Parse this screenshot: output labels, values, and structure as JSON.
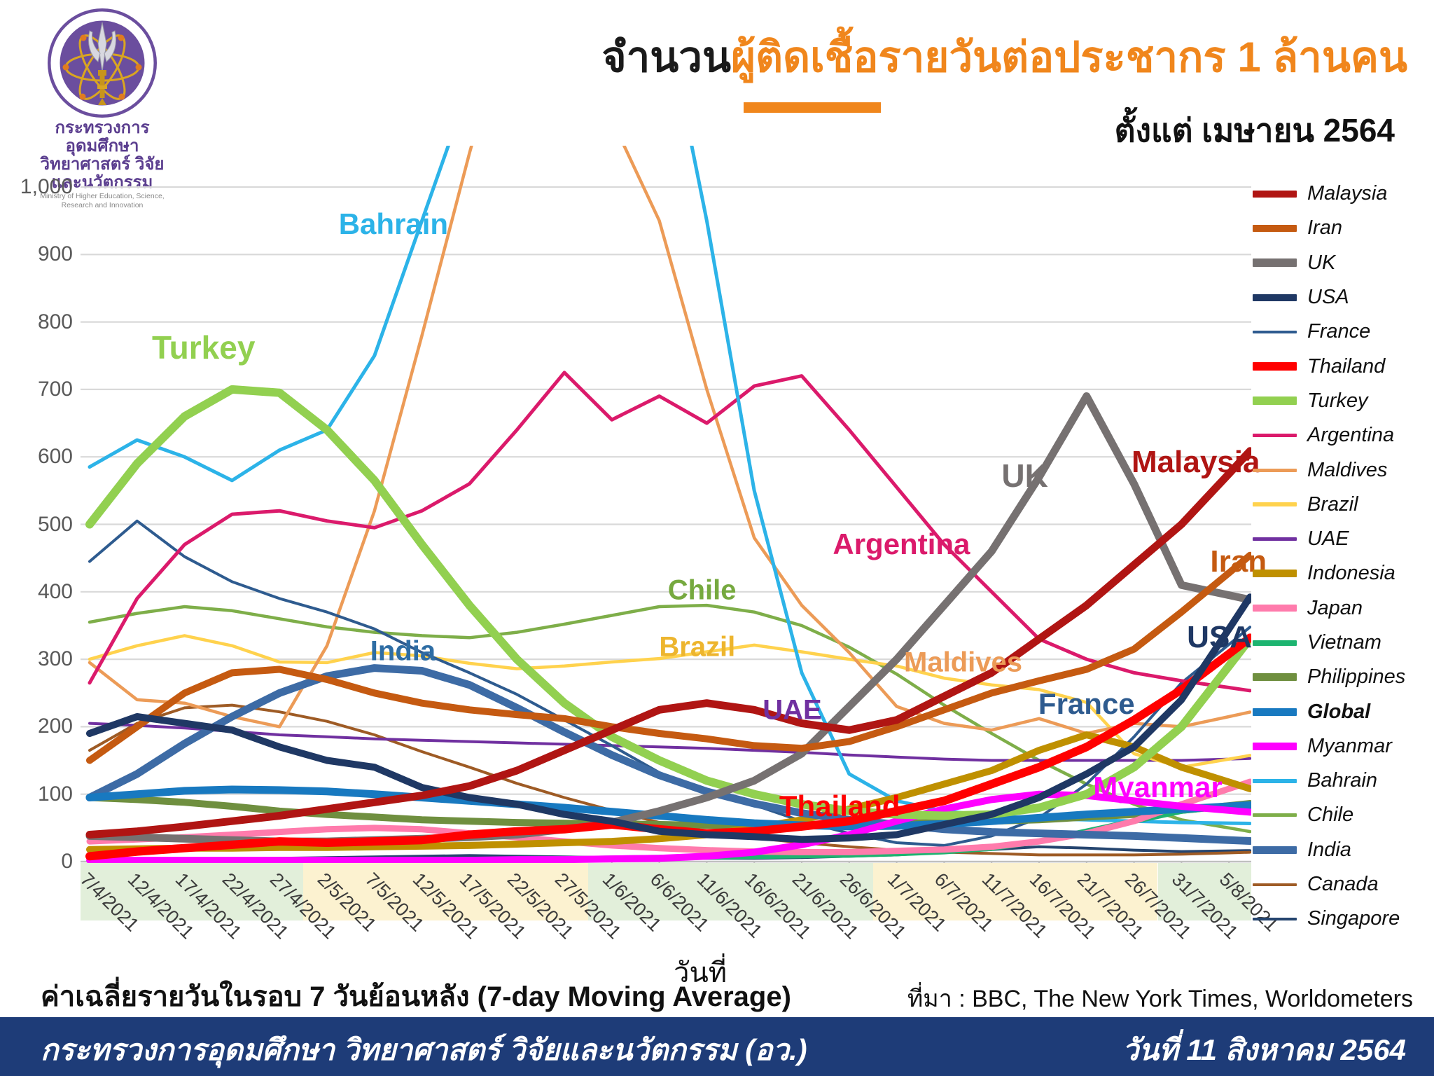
{
  "header": {
    "logo": {
      "line1": "กระทรวงการอุดมศึกษา",
      "line2": "วิทยาศาสตร์ วิจัยและนวัตกรรม",
      "line3": "Ministry of Higher Education, Science, Research and Innovation"
    },
    "title_black": "จำนวน",
    "title_orange": "ผู้ติดเชื้อรายวันต่อประชากร 1 ล้านคน",
    "subtitle": "ตั้งแต่ เมษายน 2564",
    "accent_color": "#F0861C"
  },
  "chart_data": {
    "type": "line",
    "title": "จำนวนผู้ติดเชื้อรายวันต่อประชากร 1 ล้านคน ตั้งแต่ เมษายน 2564",
    "xlabel": "วันที่",
    "ylabel": "",
    "ylim": [
      0,
      1000
    ],
    "ytick_interval": 100,
    "y_tick_labels": [
      "0",
      "100",
      "200",
      "300",
      "400",
      "500",
      "600",
      "700",
      "800",
      "900",
      "1,000"
    ],
    "grid": "horizontal",
    "legend_position": "right",
    "note": "ค่าเฉลี่ยรายวันในรอบ 7 วันย้อนหลัง (7-day Moving Average)",
    "x_labels": [
      "7/4/2021",
      "12/4/2021",
      "17/4/2021",
      "22/4/2021",
      "27/4/2021",
      "2/5/2021",
      "7/5/2021",
      "12/5/2021",
      "17/5/2021",
      "22/5/2021",
      "27/5/2021",
      "1/6/2021",
      "6/6/2021",
      "11/6/2021",
      "16/6/2021",
      "21/6/2021",
      "26/6/2021",
      "1/7/2021",
      "6/7/2021",
      "11/7/2021",
      "16/7/2021",
      "21/7/2021",
      "26/7/2021",
      "31/7/2021",
      "5/8/2021"
    ],
    "bands": [
      {
        "from": 0,
        "to": 4,
        "color": "#E2EFDA"
      },
      {
        "from": 5,
        "to": 10,
        "color": "#FCF2D0"
      },
      {
        "from": 11,
        "to": 16,
        "color": "#E2EFDA"
      },
      {
        "from": 17,
        "to": 22,
        "color": "#FCF2D0"
      },
      {
        "from": 23,
        "to": 24,
        "color": "#E2EFDA"
      }
    ],
    "series": [
      {
        "name": "Singapore",
        "color": "#25456F",
        "width": 4,
        "values": [
          3,
          3,
          3,
          4,
          5,
          6,
          7,
          8,
          9,
          8,
          7,
          6,
          5,
          5,
          5,
          6,
          8,
          10,
          14,
          18,
          22,
          20,
          17,
          15,
          16
        ]
      },
      {
        "name": "Canada",
        "color": "#9E5B25",
        "width": 4,
        "values": [
          165,
          205,
          228,
          232,
          222,
          208,
          188,
          163,
          140,
          116,
          95,
          76,
          58,
          45,
          35,
          28,
          22,
          17,
          14,
          12,
          10,
          10,
          10,
          11,
          13
        ]
      },
      {
        "name": "Chile",
        "color": "#7EAE49",
        "width": 4.5,
        "values": [
          355,
          368,
          378,
          372,
          360,
          348,
          340,
          335,
          332,
          340,
          352,
          365,
          378,
          380,
          370,
          350,
          318,
          278,
          232,
          190,
          150,
          115,
          85,
          62,
          50
        ]
      },
      {
        "name": "UAE",
        "color": "#7030A0",
        "width": 4,
        "values": [
          205,
          202,
          198,
          193,
          188,
          185,
          182,
          180,
          178,
          176,
          174,
          172,
          170,
          168,
          165,
          162,
          158,
          155,
          152,
          150,
          150,
          150,
          150,
          150,
          152
        ]
      },
      {
        "name": "Brazil",
        "color": "#FFD24D",
        "width": 4.5,
        "values": [
          300,
          320,
          335,
          320,
          296,
          295,
          310,
          305,
          294,
          286,
          290,
          296,
          301,
          311,
          321,
          311,
          300,
          290,
          272,
          262,
          255,
          236,
          160,
          140,
          152
        ]
      },
      {
        "name": "Maldives",
        "color": "#EC9B57",
        "width": 4.5,
        "values": [
          295,
          240,
          235,
          215,
          200,
          320,
          520,
          780,
          1050,
          1300,
          1250,
          1100,
          950,
          700,
          480,
          380,
          310,
          230,
          205,
          195,
          212,
          190,
          205,
          200,
          215
        ]
      },
      {
        "name": "France",
        "color": "#2E5B8F",
        "width": 4,
        "values": [
          445,
          505,
          452,
          415,
          390,
          370,
          345,
          310,
          280,
          248,
          210,
          172,
          132,
          104,
          84,
          60,
          42,
          28,
          24,
          38,
          65,
          115,
          185,
          265,
          322
        ]
      },
      {
        "name": "Argentina",
        "color": "#DB1A6B",
        "width": 5,
        "values": [
          265,
          390,
          470,
          515,
          520,
          505,
          495,
          520,
          560,
          640,
          725,
          655,
          690,
          650,
          705,
          720,
          640,
          555,
          470,
          400,
          330,
          300,
          280,
          268,
          258
        ]
      },
      {
        "name": "Bahrain",
        "color": "#2CB3E8",
        "width": 5,
        "values": [
          585,
          625,
          600,
          565,
          610,
          640,
          750,
          950,
          1150,
          1500,
          1700,
          1600,
          1300,
          950,
          550,
          280,
          130,
          90,
          75,
          68,
          64,
          62,
          60,
          58,
          57
        ]
      },
      {
        "name": "Philippines",
        "color": "#6F8F3F",
        "width": 10,
        "values": [
          95,
          92,
          88,
          82,
          75,
          70,
          66,
          62,
          60,
          58,
          57,
          56,
          55,
          54,
          54,
          55,
          56,
          57,
          58,
          60,
          62,
          66,
          70,
          76,
          83
        ]
      },
      {
        "name": "Vietnam",
        "color": "#1DB470",
        "width": 8,
        "values": [
          1,
          1,
          1,
          1,
          1,
          1,
          1,
          2,
          2,
          3,
          4,
          5,
          6,
          7,
          8,
          9,
          10,
          12,
          15,
          20,
          30,
          45,
          60,
          75,
          82
        ]
      },
      {
        "name": "Japan",
        "color": "#FF7BAC",
        "width": 9,
        "values": [
          30,
          33,
          36,
          40,
          44,
          48,
          50,
          48,
          42,
          36,
          30,
          24,
          20,
          17,
          15,
          14,
          14,
          16,
          18,
          22,
          30,
          42,
          60,
          85,
          108
        ]
      },
      {
        "name": "Indonesia",
        "color": "#BF9000",
        "width": 10,
        "values": [
          18,
          19,
          20,
          20,
          21,
          21,
          22,
          23,
          24,
          26,
          28,
          30,
          34,
          40,
          50,
          62,
          78,
          95,
          115,
          135,
          165,
          188,
          170,
          140,
          118
        ]
      },
      {
        "name": "India",
        "color": "#3D6BA5",
        "width": 11,
        "values": [
          95,
          130,
          175,
          215,
          250,
          275,
          287,
          283,
          262,
          228,
          192,
          158,
          128,
          104,
          86,
          72,
          62,
          55,
          48,
          44,
          42,
          40,
          38,
          35,
          32
        ]
      },
      {
        "name": "Global",
        "color": "#1879C0",
        "width": 11,
        "values": [
          95,
          100,
          105,
          107,
          106,
          104,
          100,
          95,
          90,
          85,
          80,
          74,
          68,
          62,
          57,
          54,
          52,
          53,
          56,
          60,
          65,
          70,
          74,
          78,
          82
        ]
      },
      {
        "name": "Myanmar",
        "color": "#FF00FF",
        "width": 10,
        "values": [
          2,
          2,
          2,
          2,
          2,
          2,
          2,
          2,
          2,
          3,
          3,
          4,
          5,
          8,
          14,
          25,
          40,
          60,
          78,
          92,
          100,
          98,
          90,
          82,
          76
        ]
      },
      {
        "name": "Turkey",
        "color": "#92D050",
        "width": 12,
        "values": [
          500,
          590,
          660,
          700,
          695,
          640,
          565,
          470,
          380,
          300,
          235,
          185,
          150,
          120,
          100,
          85,
          75,
          70,
          68,
          70,
          80,
          100,
          140,
          200,
          290
        ]
      },
      {
        "name": "UK",
        "color": "#767171",
        "width": 11,
        "values": [
          38,
          36,
          34,
          32,
          30,
          30,
          32,
          34,
          36,
          40,
          48,
          58,
          75,
          95,
          120,
          160,
          230,
          300,
          380,
          460,
          570,
          690,
          560,
          410,
          395
        ]
      },
      {
        "name": "Iran",
        "color": "#C55A11",
        "width": 10,
        "values": [
          150,
          200,
          250,
          280,
          285,
          270,
          250,
          235,
          225,
          218,
          212,
          200,
          190,
          182,
          172,
          168,
          178,
          200,
          225,
          250,
          268,
          285,
          315,
          370,
          428
        ]
      },
      {
        "name": "Thailand",
        "color": "#FF0000",
        "width": 12,
        "values": [
          8,
          15,
          20,
          25,
          30,
          28,
          30,
          32,
          40,
          45,
          48,
          55,
          48,
          42,
          45,
          52,
          60,
          75,
          90,
          115,
          140,
          170,
          210,
          255,
          308
        ]
      },
      {
        "name": "USA",
        "color": "#1F3864",
        "width": 10,
        "values": [
          190,
          215,
          205,
          195,
          170,
          150,
          140,
          110,
          95,
          85,
          70,
          60,
          45,
          40,
          37,
          33,
          35,
          40,
          55,
          70,
          95,
          130,
          170,
          240,
          345
        ]
      },
      {
        "name": "Malaysia",
        "color": "#B01513",
        "width": 11,
        "values": [
          40,
          45,
          52,
          60,
          68,
          78,
          88,
          98,
          112,
          135,
          165,
          195,
          225,
          235,
          225,
          205,
          195,
          210,
          245,
          280,
          330,
          380,
          440,
          500,
          575
        ]
      }
    ],
    "annotations": [
      {
        "text": "Bahrain",
        "color": "#2CB3E8",
        "tick": 6.4,
        "value": 945,
        "size": 42
      },
      {
        "text": "Turkey",
        "color": "#92D050",
        "tick": 2.4,
        "value": 762,
        "size": 46
      },
      {
        "text": "India",
        "color": "#2E6DA4",
        "tick": 6.6,
        "value": 312,
        "size": 40
      },
      {
        "text": "Chile",
        "color": "#76A93F",
        "tick": 12.9,
        "value": 402,
        "size": 40
      },
      {
        "text": "Brazil",
        "color": "#EDB52E",
        "tick": 12.8,
        "value": 318,
        "size": 40
      },
      {
        "text": "Maldives",
        "color": "#EC9B57",
        "tick": 18.4,
        "value": 295,
        "size": 40
      },
      {
        "text": "UAE",
        "color": "#7030A0",
        "tick": 14.8,
        "value": 224,
        "size": 40
      },
      {
        "text": "Argentina",
        "color": "#DB1A6B",
        "tick": 17.1,
        "value": 470,
        "size": 42
      },
      {
        "text": "Thailand",
        "color": "#FF0000",
        "tick": 15.8,
        "value": 82,
        "size": 42
      },
      {
        "text": "UK",
        "color": "#767171",
        "tick": 19.7,
        "value": 572,
        "size": 46
      },
      {
        "text": "Malaysia",
        "color": "#B01513",
        "tick": 23.3,
        "value": 592,
        "size": 44
      },
      {
        "text": "Iran",
        "color": "#C55A11",
        "tick": 24.2,
        "value": 444,
        "size": 44
      },
      {
        "text": "USA",
        "color": "#1F3864",
        "tick": 23.8,
        "value": 332,
        "size": 44
      },
      {
        "text": "France",
        "color": "#2E5B8F",
        "tick": 21.0,
        "value": 234,
        "size": 42
      },
      {
        "text": "Myanmar",
        "color": "#FF00FF",
        "tick": 22.5,
        "value": 110,
        "size": 42
      }
    ]
  },
  "legend": {
    "items": [
      {
        "label": "Malaysia",
        "color": "#B01513",
        "height": 10,
        "bold": false
      },
      {
        "label": "Iran",
        "color": "#C55A11",
        "height": 10,
        "bold": false
      },
      {
        "label": "UK",
        "color": "#767171",
        "height": 12,
        "bold": false
      },
      {
        "label": "USA",
        "color": "#1F3864",
        "height": 10,
        "bold": false
      },
      {
        "label": "France",
        "color": "#2E5B8F",
        "height": 4,
        "bold": false
      },
      {
        "label": "Thailand",
        "color": "#FF0000",
        "height": 12,
        "bold": false
      },
      {
        "label": "Turkey",
        "color": "#92D050",
        "height": 12,
        "bold": false
      },
      {
        "label": "Argentina",
        "color": "#DB1A6B",
        "height": 5,
        "bold": false
      },
      {
        "label": "Maldives",
        "color": "#EC9B57",
        "height": 5,
        "bold": false
      },
      {
        "label": "Brazil",
        "color": "#FFD24D",
        "height": 6,
        "bold": false
      },
      {
        "label": "UAE",
        "color": "#7030A0",
        "height": 5,
        "bold": false
      },
      {
        "label": "Indonesia",
        "color": "#BF9000",
        "height": 11,
        "bold": false
      },
      {
        "label": "Japan",
        "color": "#FF7BAC",
        "height": 10,
        "bold": false
      },
      {
        "label": "Vietnam",
        "color": "#1DB470",
        "height": 8,
        "bold": false
      },
      {
        "label": "Philippines",
        "color": "#6F8F3F",
        "height": 11,
        "bold": false
      },
      {
        "label": "Global",
        "color": "#1879C0",
        "height": 11,
        "bold": true
      },
      {
        "label": "Myanmar",
        "color": "#FF00FF",
        "height": 11,
        "bold": false
      },
      {
        "label": "Bahrain",
        "color": "#2CB3E8",
        "height": 6,
        "bold": false
      },
      {
        "label": "Chile",
        "color": "#7EAE49",
        "height": 5,
        "bold": false
      },
      {
        "label": "India",
        "color": "#3D6BA5",
        "height": 11,
        "bold": false
      },
      {
        "label": "Canada",
        "color": "#9E5B25",
        "height": 4,
        "bold": false
      },
      {
        "label": "Singapore",
        "color": "#25456F",
        "height": 4,
        "bold": false
      }
    ]
  },
  "footer": {
    "source": "ที่มา : BBC, The New York Times, Worldometers",
    "bar_left": "กระทรวงการอุดมศึกษา วิทยาศาสตร์ วิจัยและนวัตกรรม (อว.)",
    "bar_right": "วันที่ 11 สิงหาคม 2564",
    "bar_color": "#1E3C78"
  }
}
